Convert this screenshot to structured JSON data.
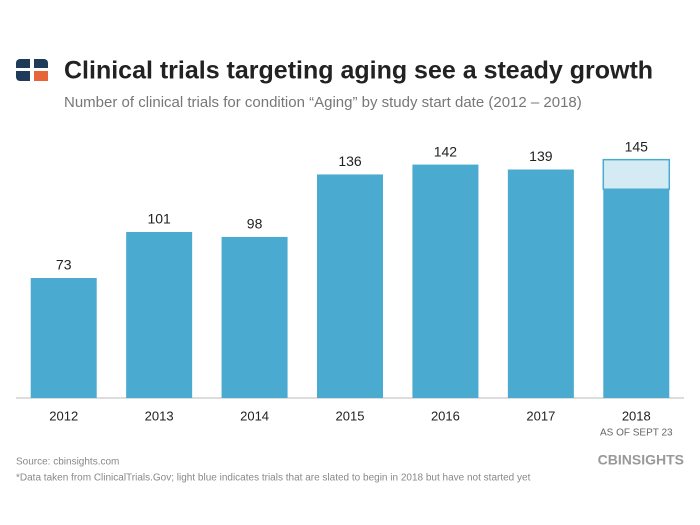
{
  "chart_data": {
    "type": "stacked_bar",
    "title": "Clinical trials targeting aging see a steady growth",
    "subtitle": "Number of clinical trials for condition “Aging” by study start date (2012 – 2018)",
    "categories": [
      "2012",
      "2013",
      "2014",
      "2015",
      "2016",
      "2017",
      "2018"
    ],
    "category_notes": [
      null,
      null,
      null,
      null,
      null,
      null,
      "AS OF SEPT 23"
    ],
    "series": [
      {
        "color": "#4aaad0",
        "values": [
          73,
          101,
          98,
          136,
          142,
          139,
          127
        ]
      },
      {
        "color": "#d4ebf4",
        "values": [
          null,
          null,
          null,
          null,
          null,
          null,
          18
        ]
      }
    ],
    "totals": [
      {
        "x": "2018",
        "text": "145"
      }
    ],
    "ylim": [
      0,
      160
    ],
    "source": "Source: cbinsights.com",
    "footnote": "*Data taken from ClinicalTrials.Gov; light blue indicates trials that are slated to begin in 2018 but have not started yet",
    "brand": "CBINSIGHTS"
  }
}
